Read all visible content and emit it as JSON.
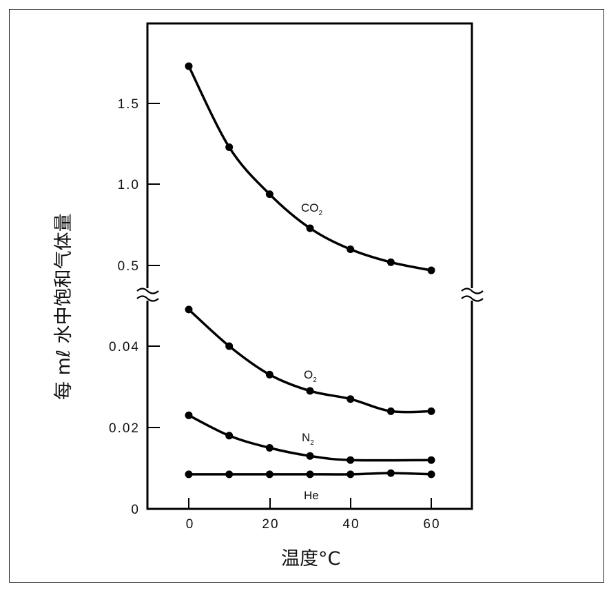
{
  "chart_data": {
    "type": "line",
    "title": "",
    "xlabel": "温度°C",
    "ylabel": "每 mℓ 水中饱和气体量",
    "x": [
      0,
      10,
      20,
      30,
      40,
      50,
      60
    ],
    "x_ticks": [
      "0",
      "20",
      "40",
      "60"
    ],
    "xlim": [
      -10,
      70
    ],
    "y_axis_broken": true,
    "y_ticks_upper": [
      "1.5",
      "1.0",
      "0.5"
    ],
    "y_ticks_lower": [
      "0.04",
      "0.02",
      "0"
    ],
    "ylim_upper": [
      0.5,
      1.75
    ],
    "ylim_lower": [
      0,
      0.05
    ],
    "grid": false,
    "legend": "inline labels",
    "series": [
      {
        "name": "CO₂",
        "label": "CO",
        "sub": "2",
        "axis": "upper",
        "x": [
          0,
          10,
          20,
          30,
          40,
          50,
          60
        ],
        "values": [
          1.73,
          1.23,
          0.94,
          0.73,
          0.6,
          0.52,
          0.47
        ]
      },
      {
        "name": "O₂",
        "label": "O",
        "sub": "2",
        "axis": "lower",
        "x": [
          0,
          10,
          20,
          30,
          40,
          50,
          60
        ],
        "values": [
          0.049,
          0.04,
          0.033,
          0.029,
          0.027,
          0.024,
          0.024
        ]
      },
      {
        "name": "N₂",
        "label": "N",
        "sub": "2",
        "axis": "lower",
        "x": [
          0,
          10,
          20,
          30,
          40,
          60
        ],
        "values": [
          0.023,
          0.018,
          0.015,
          0.013,
          0.012,
          0.012
        ]
      },
      {
        "name": "He",
        "label": "He",
        "sub": "",
        "axis": "lower",
        "x": [
          0,
          10,
          20,
          30,
          40,
          50,
          60
        ],
        "values": [
          0.0085,
          0.0085,
          0.0085,
          0.0085,
          0.0085,
          0.0088,
          0.0085
        ]
      }
    ]
  },
  "labels": {
    "co2": "CO",
    "co2_sub": "2",
    "o2": "O",
    "o2_sub": "2",
    "n2": "N",
    "n2_sub": "2",
    "he": "He"
  },
  "axes": {
    "xlabel": "温度°C",
    "ylabel": "每 mℓ 水中饱和气体量",
    "x_ticks": [
      "0",
      "20",
      "40",
      "60"
    ],
    "y_upper": [
      "1.5",
      "1.0",
      "0.5"
    ],
    "y_lower": [
      "0.04",
      "0.02",
      "0"
    ]
  }
}
